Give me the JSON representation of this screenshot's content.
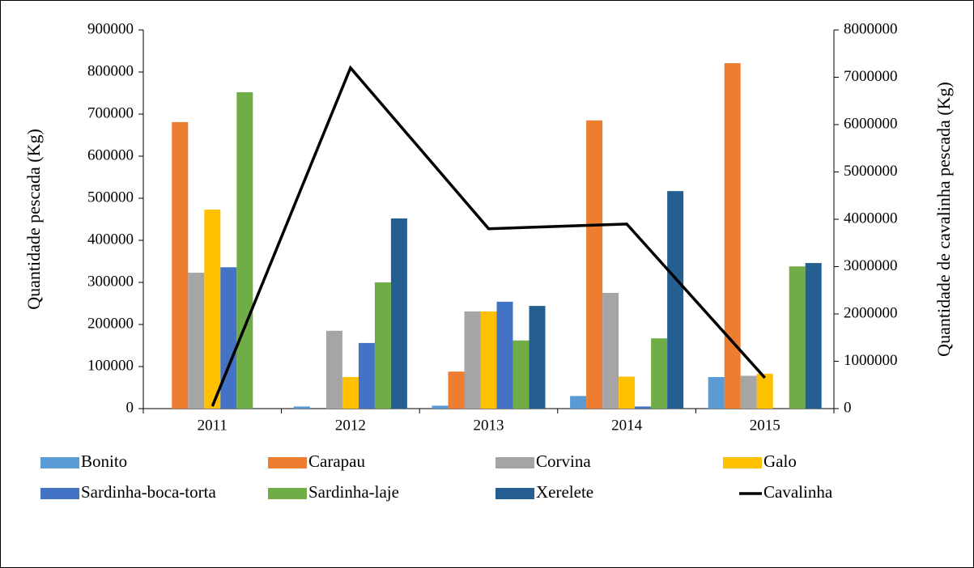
{
  "chart_data": {
    "type": "bar",
    "categories": [
      "2011",
      "2012",
      "2013",
      "2014",
      "2015"
    ],
    "y_label": "Quantidade pescada (Kg)",
    "y2_label": "Quantidade de cavalinha pescada (Kg)",
    "ylim": [
      0,
      900000
    ],
    "yticks": [
      0,
      100000,
      200000,
      300000,
      400000,
      500000,
      600000,
      700000,
      800000,
      900000
    ],
    "y2lim": [
      0,
      8000000
    ],
    "y2ticks": [
      0,
      1000000,
      2000000,
      3000000,
      4000000,
      5000000,
      6000000,
      7000000,
      8000000
    ],
    "legend": "bottom",
    "series": [
      {
        "name": "Bonito",
        "color": "#5b9bd5",
        "values": [
          0,
          5000,
          7000,
          30000,
          75000
        ]
      },
      {
        "name": "Carapau",
        "color": "#ed7d31",
        "values": [
          681000,
          0,
          88000,
          685000,
          821000
        ]
      },
      {
        "name": "Corvina",
        "color": "#a5a5a5",
        "values": [
          323000,
          185000,
          231000,
          275000,
          78000
        ]
      },
      {
        "name": "Galo",
        "color": "#ffc000",
        "values": [
          473000,
          75000,
          231000,
          76000,
          83000
        ]
      },
      {
        "name": "Sardinha-boca-torta",
        "color": "#4472c4",
        "values": [
          336000,
          156000,
          254000,
          5000,
          0
        ]
      },
      {
        "name": "Sardinha-laje",
        "color": "#70ad47",
        "values": [
          752000,
          300000,
          162000,
          167000,
          338000
        ]
      },
      {
        "name": "Xerelete",
        "color": "#255e91",
        "values": [
          0,
          452000,
          244000,
          517000,
          346000
        ]
      },
      {
        "name": "Cavalinha",
        "color": "#000000",
        "type": "line",
        "axis": "y2",
        "values": [
          50000,
          7200000,
          3800000,
          3900000,
          650000
        ]
      }
    ]
  }
}
